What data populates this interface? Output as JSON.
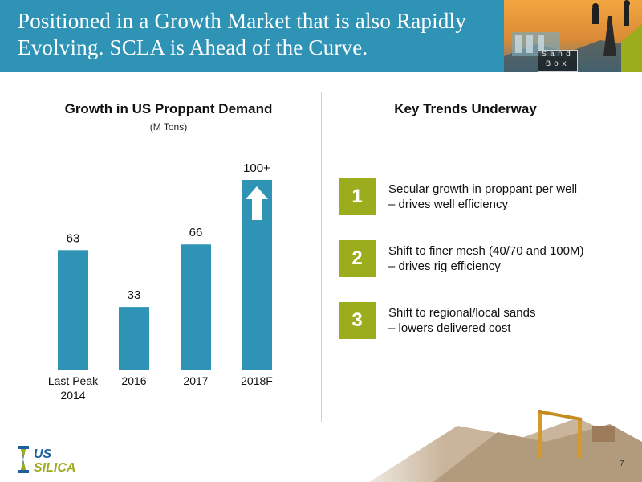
{
  "header": {
    "title": "Positioned in a Growth Market that is also Rapidly Evolving. SCLA is Ahead of the Curve.",
    "logo_line1": "Sand",
    "logo_line2": "Box"
  },
  "chart_data": {
    "type": "bar",
    "title": "Growth in US Proppant Demand",
    "subtitle": "(M Tons)",
    "categories": [
      "Last Peak\n2014",
      "2016",
      "2017",
      "2018F"
    ],
    "values": [
      63,
      33,
      66,
      100
    ],
    "value_labels": [
      "63",
      "33",
      "66",
      "100+"
    ],
    "annotations": [
      {
        "category": "2018F",
        "type": "up-arrow"
      }
    ],
    "ylim": [
      0,
      100
    ],
    "grid": false,
    "legend": "none",
    "colors": {
      "bar": "#2f93b6",
      "arrow": "#ffffff"
    }
  },
  "trends": {
    "title": "Key Trends Underway",
    "items": [
      {
        "number": "1",
        "line1": "Secular growth in proppant per well",
        "line2": "– drives well efficiency"
      },
      {
        "number": "2",
        "line1": "Shift to finer mesh (40/70 and 100M)",
        "line2": "– drives rig efficiency"
      },
      {
        "number": "3",
        "line1": "Shift to regional/local sands",
        "line2": "– lowers delivered cost"
      }
    ]
  },
  "footer": {
    "logo_text_1": "US",
    "logo_text_2": "SILICA",
    "page_number": "7"
  },
  "colors": {
    "header": "#2f93b6",
    "accent_green": "#9bad1c",
    "logo_green": "#9bad1c",
    "logo_blue": "#1e5f9e"
  }
}
